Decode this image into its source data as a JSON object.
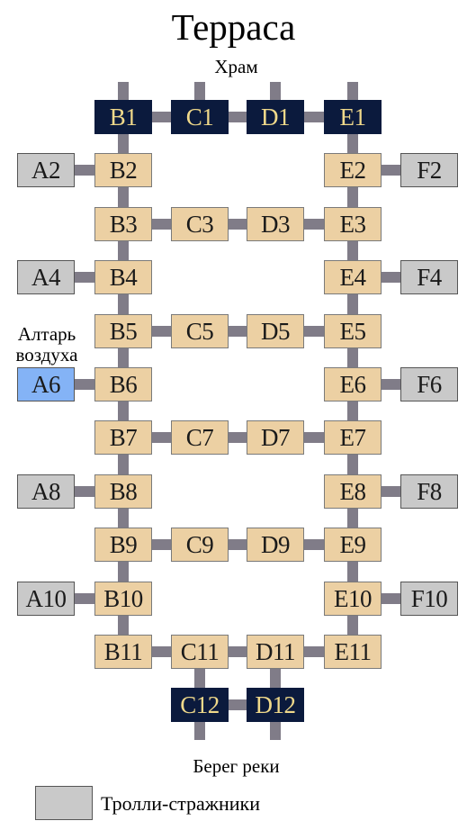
{
  "title": "Терраса",
  "labels": {
    "top": "Храм",
    "bottom": "Берег реки",
    "altar_line1": "Алтарь",
    "altar_line2": "воздуха"
  },
  "legend": {
    "text": "Тролли-стражники",
    "color": "#c9c9c9"
  },
  "colors": {
    "room": "#ecd0a3",
    "dark": "#0b1a3d",
    "dark_text": "#f0d98a",
    "guard": "#c9c9c9",
    "altar": "#84b3f6",
    "link": "#807c88"
  },
  "cells": [
    {
      "id": "B1",
      "type": "dark"
    },
    {
      "id": "C1",
      "type": "dark"
    },
    {
      "id": "D1",
      "type": "dark"
    },
    {
      "id": "E1",
      "type": "dark"
    },
    {
      "id": "A2",
      "type": "guard"
    },
    {
      "id": "B2",
      "type": "room"
    },
    {
      "id": "E2",
      "type": "room"
    },
    {
      "id": "F2",
      "type": "guard"
    },
    {
      "id": "B3",
      "type": "room"
    },
    {
      "id": "C3",
      "type": "room"
    },
    {
      "id": "D3",
      "type": "room"
    },
    {
      "id": "E3",
      "type": "room"
    },
    {
      "id": "A4",
      "type": "guard"
    },
    {
      "id": "B4",
      "type": "room"
    },
    {
      "id": "E4",
      "type": "room"
    },
    {
      "id": "F4",
      "type": "guard"
    },
    {
      "id": "B5",
      "type": "room"
    },
    {
      "id": "C5",
      "type": "room"
    },
    {
      "id": "D5",
      "type": "room"
    },
    {
      "id": "E5",
      "type": "room"
    },
    {
      "id": "A6",
      "type": "altar"
    },
    {
      "id": "B6",
      "type": "room"
    },
    {
      "id": "E6",
      "type": "room"
    },
    {
      "id": "F6",
      "type": "guard"
    },
    {
      "id": "B7",
      "type": "room"
    },
    {
      "id": "C7",
      "type": "room"
    },
    {
      "id": "D7",
      "type": "room"
    },
    {
      "id": "E7",
      "type": "room"
    },
    {
      "id": "A8",
      "type": "guard"
    },
    {
      "id": "B8",
      "type": "room"
    },
    {
      "id": "E8",
      "type": "room"
    },
    {
      "id": "F8",
      "type": "guard"
    },
    {
      "id": "B9",
      "type": "room"
    },
    {
      "id": "C9",
      "type": "room"
    },
    {
      "id": "D9",
      "type": "room"
    },
    {
      "id": "E9",
      "type": "room"
    },
    {
      "id": "A10",
      "type": "guard"
    },
    {
      "id": "B10",
      "type": "room"
    },
    {
      "id": "E10",
      "type": "room"
    },
    {
      "id": "F10",
      "type": "guard"
    },
    {
      "id": "B11",
      "type": "room"
    },
    {
      "id": "C11",
      "type": "room"
    },
    {
      "id": "D11",
      "type": "room"
    },
    {
      "id": "E11",
      "type": "room"
    },
    {
      "id": "C12",
      "type": "dark"
    },
    {
      "id": "D12",
      "type": "dark"
    }
  ],
  "connections": [
    [
      "B1",
      "C1"
    ],
    [
      "C1",
      "D1"
    ],
    [
      "D1",
      "E1"
    ],
    [
      "B1",
      "B2"
    ],
    [
      "E1",
      "E2"
    ],
    [
      "A2",
      "B2"
    ],
    [
      "E2",
      "F2"
    ],
    [
      "B2",
      "B3"
    ],
    [
      "E2",
      "E3"
    ],
    [
      "B3",
      "C3"
    ],
    [
      "C3",
      "D3"
    ],
    [
      "D3",
      "E3"
    ],
    [
      "B3",
      "B4"
    ],
    [
      "E3",
      "E4"
    ],
    [
      "A4",
      "B4"
    ],
    [
      "E4",
      "F4"
    ],
    [
      "B4",
      "B5"
    ],
    [
      "E4",
      "E5"
    ],
    [
      "B5",
      "C5"
    ],
    [
      "C5",
      "D5"
    ],
    [
      "D5",
      "E5"
    ],
    [
      "B5",
      "B6"
    ],
    [
      "E5",
      "E6"
    ],
    [
      "A6",
      "B6"
    ],
    [
      "E6",
      "F6"
    ],
    [
      "B6",
      "B7"
    ],
    [
      "E6",
      "E7"
    ],
    [
      "B7",
      "C7"
    ],
    [
      "C7",
      "D7"
    ],
    [
      "D7",
      "E7"
    ],
    [
      "B7",
      "B8"
    ],
    [
      "E7",
      "E8"
    ],
    [
      "A8",
      "B8"
    ],
    [
      "E8",
      "F8"
    ],
    [
      "B8",
      "B9"
    ],
    [
      "E8",
      "E9"
    ],
    [
      "B9",
      "C9"
    ],
    [
      "C9",
      "D9"
    ],
    [
      "D9",
      "E9"
    ],
    [
      "B9",
      "B10"
    ],
    [
      "E9",
      "E10"
    ],
    [
      "A10",
      "B10"
    ],
    [
      "E10",
      "F10"
    ],
    [
      "B10",
      "B11"
    ],
    [
      "E10",
      "E11"
    ],
    [
      "B11",
      "C11"
    ],
    [
      "C11",
      "D11"
    ],
    [
      "D11",
      "E11"
    ],
    [
      "C11",
      "C12"
    ],
    [
      "D11",
      "D12"
    ],
    [
      "C12",
      "D12"
    ]
  ],
  "stubs": [
    {
      "id": "B1",
      "dir": "up"
    },
    {
      "id": "C1",
      "dir": "up"
    },
    {
      "id": "D1",
      "dir": "up"
    },
    {
      "id": "E1",
      "dir": "up"
    },
    {
      "id": "C12",
      "dir": "down"
    },
    {
      "id": "D12",
      "dir": "down"
    }
  ]
}
